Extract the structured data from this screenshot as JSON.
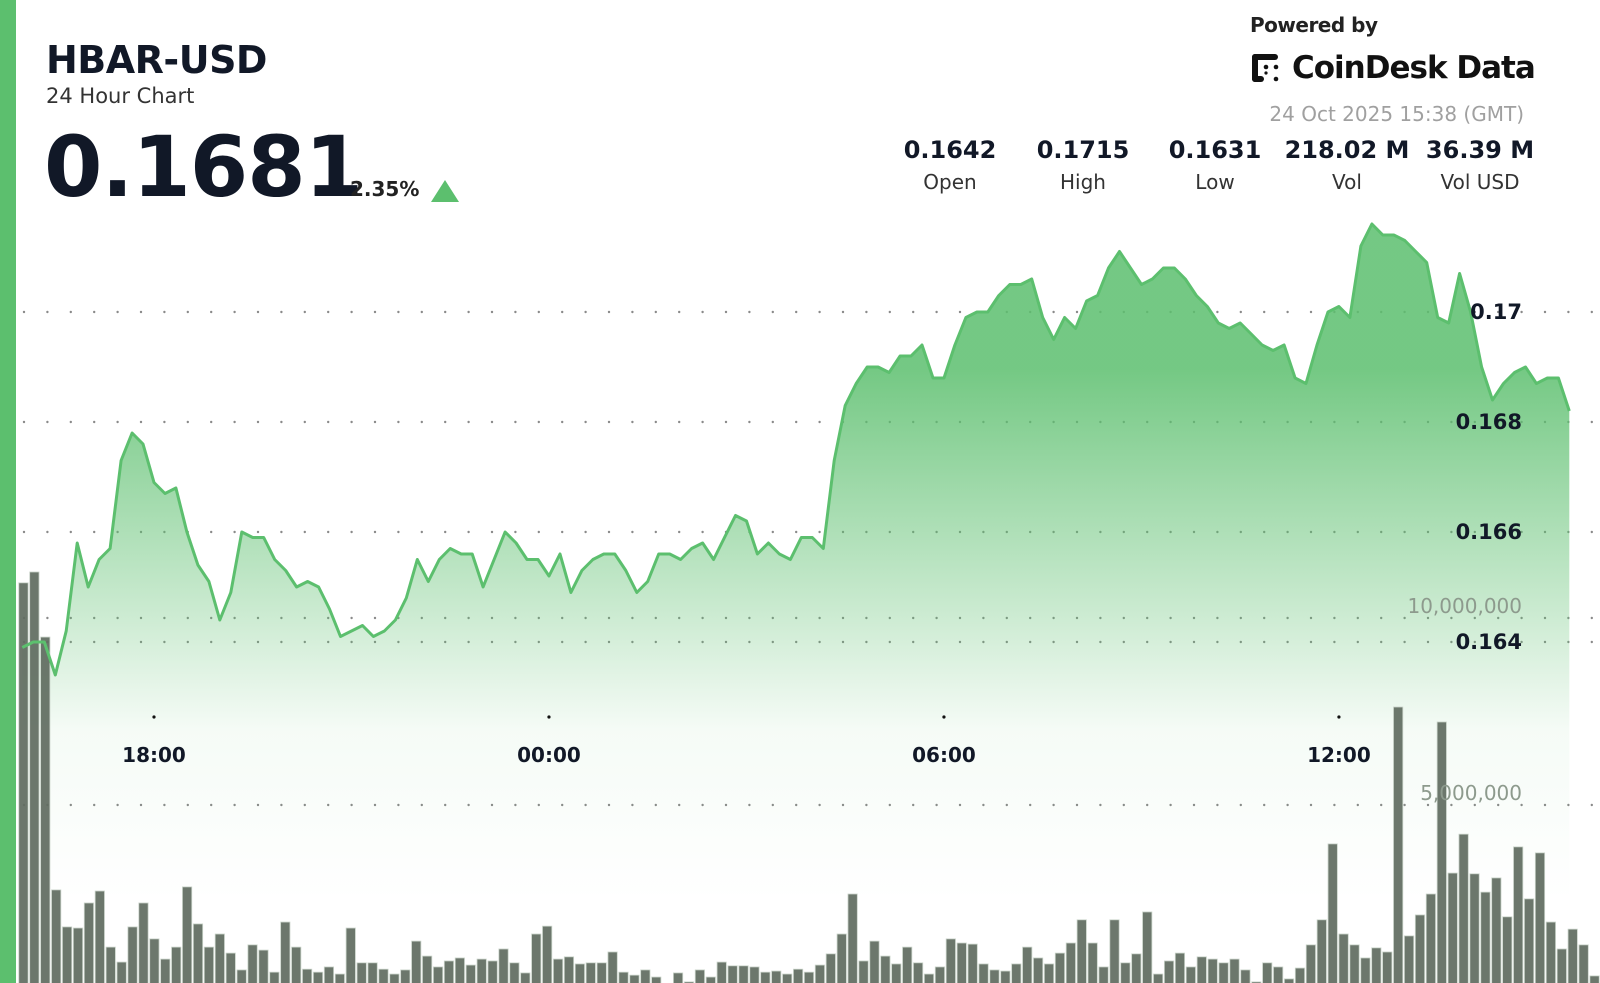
{
  "header": {
    "title": "HBAR-USD",
    "subtitle": "24 Hour Chart",
    "price": "0.1681",
    "change": "2.35%",
    "change_direction": "up",
    "powered_by": "Powered by",
    "brand": "CoinDesk Data",
    "timestamp": "24 Oct 2025 15:38 (GMT)"
  },
  "stats": [
    {
      "value": "0.1642",
      "label": "Open"
    },
    {
      "value": "0.1715",
      "label": "High"
    },
    {
      "value": "0.1631",
      "label": "Low"
    },
    {
      "value": "218.02 M",
      "label": "Vol"
    },
    {
      "value": "36.39 M",
      "label": "Vol USD"
    }
  ],
  "colors": {
    "accent": "#5cbf6e",
    "line": "#5cbf6e",
    "volume": "#5f6b5f",
    "volume_label": "#8d9a8d"
  },
  "chart_data": {
    "type": "area",
    "x_ticks": [
      "18:00",
      "00:00",
      "06:00",
      "12:00"
    ],
    "y_ticks": [
      "0.17",
      "0.168",
      "0.166",
      "0.164"
    ],
    "y_tick_values": [
      0.17,
      0.168,
      0.166,
      0.164
    ],
    "ylim": [
      0.1628,
      0.1718
    ],
    "grid": true,
    "price": [
      [
        "16:00",
        0.1639
      ],
      [
        "16:10",
        0.164
      ],
      [
        "16:20",
        0.164
      ],
      [
        "16:30",
        0.1634
      ],
      [
        "16:40",
        0.1642
      ],
      [
        "16:50",
        0.1658
      ],
      [
        "17:00",
        0.165
      ],
      [
        "17:10",
        0.1655
      ],
      [
        "17:20",
        0.1657
      ],
      [
        "17:30",
        0.1673
      ],
      [
        "17:40",
        0.1678
      ],
      [
        "17:50",
        0.1676
      ],
      [
        "18:00",
        0.1669
      ],
      [
        "18:10",
        0.1667
      ],
      [
        "18:20",
        0.1668
      ],
      [
        "18:30",
        0.166
      ],
      [
        "18:40",
        0.1654
      ],
      [
        "18:50",
        0.1651
      ],
      [
        "19:00",
        0.1644
      ],
      [
        "19:10",
        0.1649
      ],
      [
        "19:20",
        0.166
      ],
      [
        "19:30",
        0.1659
      ],
      [
        "19:40",
        0.1659
      ],
      [
        "19:50",
        0.1655
      ],
      [
        "20:00",
        0.1653
      ],
      [
        "20:10",
        0.165
      ],
      [
        "20:20",
        0.1651
      ],
      [
        "20:30",
        0.165
      ],
      [
        "20:40",
        0.1646
      ],
      [
        "20:50",
        0.1641
      ],
      [
        "21:00",
        0.1642
      ],
      [
        "21:10",
        0.1643
      ],
      [
        "21:20",
        0.1641
      ],
      [
        "21:30",
        0.1642
      ],
      [
        "21:40",
        0.1644
      ],
      [
        "21:50",
        0.1648
      ],
      [
        "22:00",
        0.1655
      ],
      [
        "22:10",
        0.1651
      ],
      [
        "22:20",
        0.1655
      ],
      [
        "22:30",
        0.1657
      ],
      [
        "22:40",
        0.1656
      ],
      [
        "22:50",
        0.1656
      ],
      [
        "23:00",
        0.165
      ],
      [
        "23:10",
        0.1655
      ],
      [
        "23:20",
        0.166
      ],
      [
        "23:30",
        0.1658
      ],
      [
        "23:40",
        0.1655
      ],
      [
        "23:50",
        0.1655
      ],
      [
        "00:00",
        0.1652
      ],
      [
        "00:10",
        0.1656
      ],
      [
        "00:20",
        0.1649
      ],
      [
        "00:30",
        0.1653
      ],
      [
        "00:40",
        0.1655
      ],
      [
        "00:50",
        0.1656
      ],
      [
        "01:00",
        0.1656
      ],
      [
        "01:10",
        0.1653
      ],
      [
        "01:20",
        0.1649
      ],
      [
        "01:30",
        0.1651
      ],
      [
        "01:40",
        0.1656
      ],
      [
        "01:50",
        0.1656
      ],
      [
        "02:00",
        0.1655
      ],
      [
        "02:10",
        0.1657
      ],
      [
        "02:20",
        0.1658
      ],
      [
        "02:30",
        0.1655
      ],
      [
        "02:40",
        0.1659
      ],
      [
        "02:50",
        0.1663
      ],
      [
        "03:00",
        0.1662
      ],
      [
        "03:10",
        0.1656
      ],
      [
        "03:20",
        0.1658
      ],
      [
        "03:30",
        0.1656
      ],
      [
        "03:40",
        0.1655
      ],
      [
        "03:50",
        0.1659
      ],
      [
        "04:00",
        0.1659
      ],
      [
        "04:10",
        0.1657
      ],
      [
        "04:20",
        0.1673
      ],
      [
        "04:30",
        0.1683
      ],
      [
        "04:40",
        0.1687
      ],
      [
        "04:50",
        0.169
      ],
      [
        "05:00",
        0.169
      ],
      [
        "05:10",
        0.1689
      ],
      [
        "05:20",
        0.1692
      ],
      [
        "05:30",
        0.1692
      ],
      [
        "05:40",
        0.1694
      ],
      [
        "05:50",
        0.1688
      ],
      [
        "06:00",
        0.1688
      ],
      [
        "06:10",
        0.1694
      ],
      [
        "06:20",
        0.1699
      ],
      [
        "06:30",
        0.17
      ],
      [
        "06:40",
        0.17
      ],
      [
        "06:50",
        0.1703
      ],
      [
        "07:00",
        0.1705
      ],
      [
        "07:10",
        0.1705
      ],
      [
        "07:20",
        0.1706
      ],
      [
        "07:30",
        0.1699
      ],
      [
        "07:40",
        0.1695
      ],
      [
        "07:50",
        0.1699
      ],
      [
        "08:00",
        0.1697
      ],
      [
        "08:10",
        0.1702
      ],
      [
        "08:20",
        0.1703
      ],
      [
        "08:30",
        0.1708
      ],
      [
        "08:40",
        0.1711
      ],
      [
        "08:50",
        0.1708
      ],
      [
        "09:00",
        0.1705
      ],
      [
        "09:10",
        0.1706
      ],
      [
        "09:20",
        0.1708
      ],
      [
        "09:30",
        0.1708
      ],
      [
        "09:40",
        0.1706
      ],
      [
        "09:50",
        0.1703
      ],
      [
        "10:00",
        0.1701
      ],
      [
        "10:10",
        0.1698
      ],
      [
        "10:20",
        0.1697
      ],
      [
        "10:30",
        0.1698
      ],
      [
        "10:40",
        0.1696
      ],
      [
        "10:50",
        0.1694
      ],
      [
        "11:00",
        0.1693
      ],
      [
        "11:10",
        0.1694
      ],
      [
        "11:20",
        0.1688
      ],
      [
        "11:30",
        0.1687
      ],
      [
        "11:40",
        0.1694
      ],
      [
        "11:50",
        0.17
      ],
      [
        "12:00",
        0.1701
      ],
      [
        "12:10",
        0.1699
      ],
      [
        "12:20",
        0.1712
      ],
      [
        "12:30",
        0.1716
      ],
      [
        "12:40",
        0.1714
      ],
      [
        "12:50",
        0.1714
      ],
      [
        "13:00",
        0.1713
      ],
      [
        "13:10",
        0.1711
      ],
      [
        "13:20",
        0.1709
      ],
      [
        "13:30",
        0.1699
      ],
      [
        "13:40",
        0.1698
      ],
      [
        "13:50",
        0.1707
      ],
      [
        "14:00",
        0.17
      ],
      [
        "14:10",
        0.169
      ],
      [
        "14:20",
        0.1684
      ],
      [
        "14:30",
        0.1687
      ],
      [
        "14:40",
        0.1689
      ],
      [
        "14:50",
        0.169
      ],
      [
        "15:00",
        0.1687
      ],
      [
        "15:10",
        0.1688
      ],
      [
        "15:20",
        0.1688
      ],
      [
        "15:30",
        0.1682
      ]
    ],
    "volume": {
      "y_ticks": [
        "10,000,000",
        "5,000,000"
      ],
      "y_tick_values": [
        10000000,
        5000000
      ],
      "values_millions": [
        10.94,
        11.23,
        9.49,
        2.73,
        1.74,
        1.71,
        2.38,
        2.7,
        1.2,
        0.8,
        1.74,
        2.38,
        1.42,
        0.88,
        1.2,
        2.81,
        1.82,
        1.2,
        1.55,
        1.04,
        0.59,
        1.26,
        1.12,
        0.53,
        1.87,
        1.2,
        0.61,
        0.53,
        0.67,
        0.48,
        1.71,
        0.78,
        0.78,
        0.61,
        0.48,
        0.59,
        1.36,
        0.96,
        0.67,
        0.83,
        0.91,
        0.72,
        0.88,
        0.83,
        1.15,
        0.78,
        0.51,
        1.55,
        1.76,
        0.88,
        0.94,
        0.75,
        0.78,
        0.78,
        1.07,
        0.53,
        0.45,
        0.59,
        0.4,
        0.19,
        0.51,
        0.27,
        0.59,
        0.4,
        0.8,
        0.7,
        0.7,
        0.67,
        0.53,
        0.56,
        0.48,
        0.61,
        0.53,
        0.72,
        1.02,
        1.55,
        2.62,
        0.83,
        1.36,
        0.96,
        0.75,
        1.2,
        0.78,
        0.48,
        0.67,
        1.42,
        1.31,
        1.28,
        0.75,
        0.59,
        0.56,
        0.75,
        1.2,
        0.91,
        0.75,
        1.04,
        1.31,
        1.93,
        1.31,
        0.67,
        1.93,
        0.78,
        1.02,
        2.14,
        0.48,
        0.83,
        1.04,
        0.67,
        0.94,
        0.88,
        0.78,
        0.88,
        0.59,
        0.27,
        0.78,
        0.67,
        0.35,
        0.64,
        1.26,
        1.93,
        3.96,
        1.55,
        1.26,
        0.91,
        1.18,
        1.07,
        7.62,
        1.5,
        2.06,
        2.62,
        7.22,
        3.18,
        4.22,
        3.16,
        2.67,
        3.05,
        2.01,
        3.88,
        2.49,
        3.72,
        1.87,
        1.15,
        1.68,
        1.26,
        0.43
      ]
    }
  }
}
